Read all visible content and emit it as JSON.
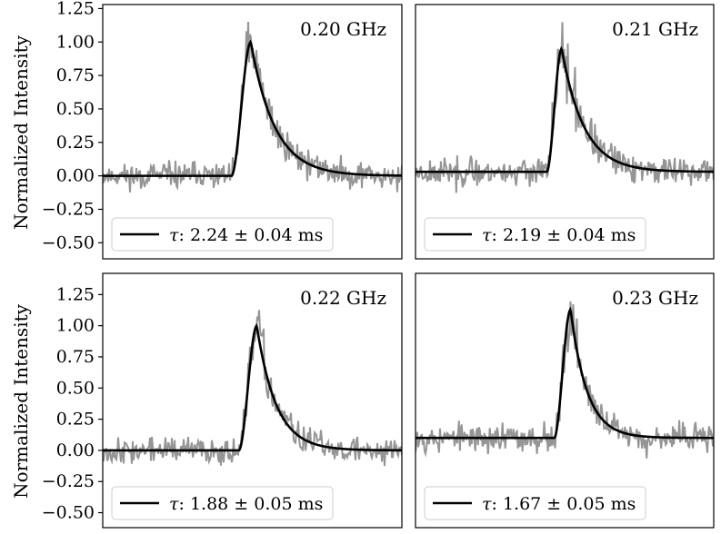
{
  "figure": {
    "ylabel": "Normalized Intensity",
    "colors": {
      "data": "#959595",
      "fit": "#000000",
      "axes": "#000000",
      "legend_border": "#cccccc"
    }
  },
  "chart_data": [
    {
      "type": "line",
      "frequency_label": "0.20 GHz",
      "ylabel": "Normalized Intensity",
      "ylim": [
        -0.62,
        1.28
      ],
      "yticks": [
        "1.25",
        "1.00",
        "0.75",
        "0.50",
        "0.25",
        "0.00",
        "−0.25",
        "−0.50"
      ],
      "ytick_values": [
        1.25,
        1.0,
        0.75,
        0.5,
        0.25,
        0.0,
        -0.25,
        -0.5
      ],
      "xlim": [
        0,
        1
      ],
      "fit": {
        "baseline": 0.0,
        "peak": 1.0,
        "peak_x": 0.495,
        "rise_start": 0.43,
        "tau_x": 0.08
      },
      "noise": {
        "sigma": 0.045,
        "seed": 11
      },
      "legend": {
        "symbol": "τ",
        "text": ": 2.24 ± 0.04 ms"
      },
      "series": [
        {
          "name": "data",
          "color": "#959595"
        },
        {
          "name": "fit",
          "color": "#000000"
        }
      ]
    },
    {
      "type": "line",
      "frequency_label": "0.21 GHz",
      "ylabel": "",
      "ylim": [
        -0.62,
        1.28
      ],
      "yticks": [],
      "ytick_values": [],
      "xlim": [
        0,
        1
      ],
      "fit": {
        "baseline": 0.03,
        "peak": 0.95,
        "peak_x": 0.49,
        "rise_start": 0.44,
        "tau_x": 0.075
      },
      "noise": {
        "sigma": 0.05,
        "seed": 23
      },
      "legend": {
        "symbol": "τ",
        "text": ": 2.19 ± 0.04 ms"
      },
      "series": [
        {
          "name": "data",
          "color": "#959595"
        },
        {
          "name": "fit",
          "color": "#000000"
        }
      ]
    },
    {
      "type": "line",
      "frequency_label": "0.22 GHz",
      "ylabel": "Normalized Intensity",
      "ylim": [
        -0.62,
        1.42
      ],
      "yticks": [
        "1.25",
        "1.00",
        "0.75",
        "0.50",
        "0.25",
        "0.00",
        "−0.25",
        "−0.50"
      ],
      "ytick_values": [
        1.25,
        1.0,
        0.75,
        0.5,
        0.25,
        0.0,
        -0.25,
        -0.5
      ],
      "xlim": [
        0,
        1
      ],
      "fit": {
        "baseline": 0.0,
        "peak": 1.0,
        "peak_x": 0.515,
        "rise_start": 0.455,
        "tau_x": 0.065
      },
      "noise": {
        "sigma": 0.05,
        "seed": 37
      },
      "legend": {
        "symbol": "τ",
        "text": ": 1.88 ± 0.05 ms"
      },
      "series": [
        {
          "name": "data",
          "color": "#959595"
        },
        {
          "name": "fit",
          "color": "#000000"
        }
      ]
    },
    {
      "type": "line",
      "frequency_label": "0.23 GHz",
      "ylabel": "",
      "ylim": [
        -0.62,
        1.42
      ],
      "yticks": [],
      "ytick_values": [],
      "xlim": [
        0,
        1
      ],
      "fit": {
        "baseline": 0.1,
        "peak": 1.13,
        "peak_x": 0.52,
        "rise_start": 0.465,
        "tau_x": 0.055
      },
      "noise": {
        "sigma": 0.055,
        "seed": 53
      },
      "legend": {
        "symbol": "τ",
        "text": ": 1.67 ± 0.05 ms"
      },
      "series": [
        {
          "name": "data",
          "color": "#959595"
        },
        {
          "name": "fit",
          "color": "#000000"
        }
      ]
    }
  ]
}
